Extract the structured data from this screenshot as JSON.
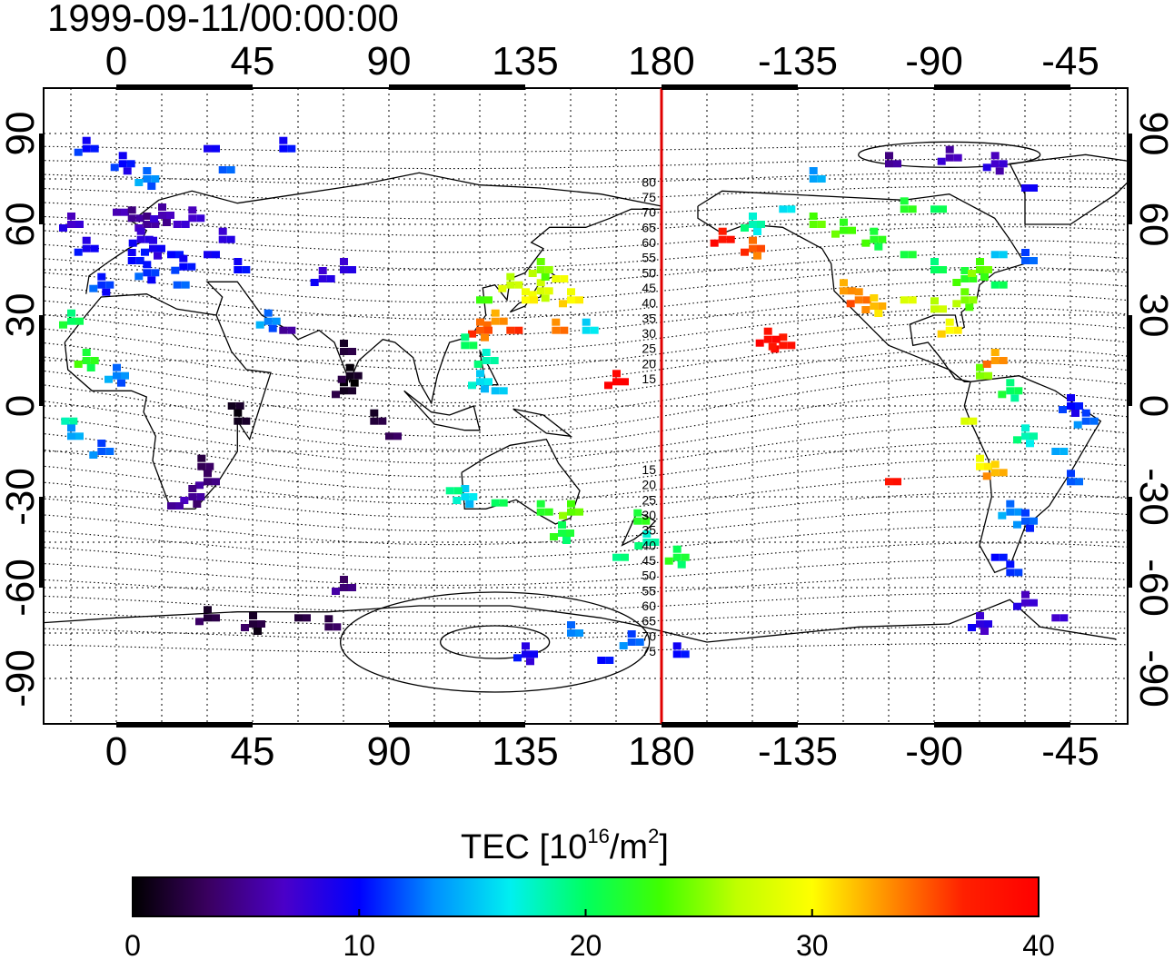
{
  "timestamp": "1999-09-11/00:00:00",
  "map": {
    "projection": "equirectangular",
    "center_longitude": 180,
    "grid": true,
    "top_lon_labels": [
      "0",
      "45",
      "90",
      "135",
      "180",
      "-135",
      "-90",
      "-45"
    ],
    "bottom_lon_labels": [
      "0",
      "45",
      "90",
      "135",
      "180",
      "-135",
      "-90",
      "-45"
    ],
    "lon_values": [
      0,
      45,
      90,
      135,
      180,
      225,
      270,
      315
    ],
    "lat_labels": [
      "90",
      "60",
      "30",
      "0",
      "-30",
      "-60",
      "-90"
    ],
    "lat_values": [
      90,
      60,
      30,
      0,
      -30,
      -60,
      -90
    ],
    "meridian_line_color": "#e00000",
    "magnetic_lat_labels": [
      "80",
      "75",
      "70",
      "65",
      "60",
      "55",
      "50",
      "45",
      "40",
      "35",
      "30",
      "25",
      "20",
      "15",
      "15",
      "20",
      "25",
      "30",
      "35",
      "40",
      "45",
      "50",
      "55",
      "60",
      "65",
      "70",
      "75"
    ]
  },
  "colorbar": {
    "title_prefix": "TEC  [10",
    "title_sup1": "16",
    "title_mid": "/m",
    "title_sup2": "2",
    "title_suffix": "]",
    "min": 0,
    "max": 40,
    "tick_labels": [
      "0",
      "10",
      "20",
      "30",
      "40"
    ],
    "colors": [
      "#000000",
      "#3a0060",
      "#4b00c8",
      "#0000ff",
      "#0090ff",
      "#00f0f0",
      "#00ff60",
      "#40ff00",
      "#c0ff00",
      "#ffff00",
      "#ff9000",
      "#ff2000",
      "#ff0000"
    ]
  },
  "chart_data": {
    "type": "heatmap",
    "value_label": "TEC",
    "value_units": "10^16/m^2",
    "points": [
      {
        "lon": 0,
        "lat": 64,
        "tec": 6
      },
      {
        "lon": 5,
        "lat": 62,
        "tec": 5
      },
      {
        "lon": 10,
        "lat": 60,
        "tec": 5
      },
      {
        "lon": 15,
        "lat": 63,
        "tec": 6
      },
      {
        "lon": 20,
        "lat": 60,
        "tec": 7
      },
      {
        "lon": 25,
        "lat": 62,
        "tec": 7
      },
      {
        "lon": 8,
        "lat": 55,
        "tec": 8
      },
      {
        "lon": 12,
        "lat": 52,
        "tec": 9
      },
      {
        "lon": 18,
        "lat": 50,
        "tec": 10
      },
      {
        "lon": 5,
        "lat": 48,
        "tec": 10
      },
      {
        "lon": 22,
        "lat": 46,
        "tec": 10
      },
      {
        "lon": 10,
        "lat": 44,
        "tec": 11
      },
      {
        "lon": 30,
        "lat": 50,
        "tec": 9
      },
      {
        "lon": 35,
        "lat": 55,
        "tec": 8
      },
      {
        "lon": -10,
        "lat": 52,
        "tec": 9
      },
      {
        "lon": -5,
        "lat": 40,
        "tec": 11
      },
      {
        "lon": 20,
        "lat": 40,
        "tec": 12
      },
      {
        "lon": 40,
        "lat": 45,
        "tec": 10
      },
      {
        "lon": -15,
        "lat": 60,
        "tec": 7
      },
      {
        "lon": 2,
        "lat": 80,
        "tec": 10
      },
      {
        "lon": 30,
        "lat": 85,
        "tec": 9
      },
      {
        "lon": 55,
        "lat": 85,
        "tec": 10
      },
      {
        "lon": -10,
        "lat": 85,
        "tec": 10
      },
      {
        "lon": 10,
        "lat": 75,
        "tec": 13
      },
      {
        "lon": 35,
        "lat": 78,
        "tec": 12
      },
      {
        "lon": 75,
        "lat": 45,
        "tec": 8
      },
      {
        "lon": 68,
        "lat": 42,
        "tec": 8
      },
      {
        "lon": 50,
        "lat": 28,
        "tec": 13
      },
      {
        "lon": 55,
        "lat": 25,
        "tec": 5
      },
      {
        "lon": 75,
        "lat": 18,
        "tec": 2
      },
      {
        "lon": 75,
        "lat": 5,
        "tec": 1
      },
      {
        "lon": 77,
        "lat": 10,
        "tec": 1
      },
      {
        "lon": 38,
        "lat": 0,
        "tec": 1
      },
      {
        "lon": 40,
        "lat": -5,
        "tec": 1
      },
      {
        "lon": 30,
        "lat": -25,
        "tec": 4
      },
      {
        "lon": 25,
        "lat": -30,
        "tec": 5
      },
      {
        "lon": 18,
        "lat": -33,
        "tec": 5
      },
      {
        "lon": 28,
        "lat": -20,
        "tec": 3
      },
      {
        "lon": -15,
        "lat": 28,
        "tec": 20
      },
      {
        "lon": -10,
        "lat": 15,
        "tec": 22
      },
      {
        "lon": -17,
        "lat": -5,
        "tec": 18
      },
      {
        "lon": -15,
        "lat": -10,
        "tec": 14
      },
      {
        "lon": -5,
        "lat": -15,
        "tec": 12
      },
      {
        "lon": 0,
        "lat": 10,
        "tec": 13
      },
      {
        "lon": 90,
        "lat": -10,
        "tec": 3
      },
      {
        "lon": 85,
        "lat": -5,
        "tec": 2
      },
      {
        "lon": 130,
        "lat": 40,
        "tec": 27
      },
      {
        "lon": 140,
        "lat": 38,
        "tec": 28
      },
      {
        "lon": 145,
        "lat": 42,
        "tec": 29
      },
      {
        "lon": 135,
        "lat": 35,
        "tec": 30
      },
      {
        "lon": 125,
        "lat": 28,
        "tec": 33
      },
      {
        "lon": 120,
        "lat": 25,
        "tec": 35
      },
      {
        "lon": 130,
        "lat": 25,
        "tec": 36
      },
      {
        "lon": 145,
        "lat": 25,
        "tec": 34
      },
      {
        "lon": 150,
        "lat": 35,
        "tec": 30
      },
      {
        "lon": 140,
        "lat": 45,
        "tec": 25
      },
      {
        "lon": 120,
        "lat": 35,
        "tec": 23
      },
      {
        "lon": 115,
        "lat": 20,
        "tec": 20
      },
      {
        "lon": 122,
        "lat": 15,
        "tec": 18
      },
      {
        "lon": 120,
        "lat": 8,
        "tec": 16
      },
      {
        "lon": 125,
        "lat": 5,
        "tec": 15
      },
      {
        "lon": 155,
        "lat": 25,
        "tec": 16
      },
      {
        "lon": 165,
        "lat": 8,
        "tec": 40
      },
      {
        "lon": 115,
        "lat": -30,
        "tec": 16
      },
      {
        "lon": 125,
        "lat": -32,
        "tec": 20
      },
      {
        "lon": 140,
        "lat": -35,
        "tec": 22
      },
      {
        "lon": 150,
        "lat": -35,
        "tec": 24
      },
      {
        "lon": 147,
        "lat": -42,
        "tec": 21
      },
      {
        "lon": 110,
        "lat": -28,
        "tec": 19
      },
      {
        "lon": 172,
        "lat": -38,
        "tec": 22
      },
      {
        "lon": 175,
        "lat": -45,
        "tec": 18
      },
      {
        "lon": 185,
        "lat": -50,
        "tec": 21
      },
      {
        "lon": 165,
        "lat": -50,
        "tec": 19
      },
      {
        "lon": 150,
        "lat": -75,
        "tec": 13
      },
      {
        "lon": 170,
        "lat": -78,
        "tec": 12
      },
      {
        "lon": 135,
        "lat": -82,
        "tec": 9
      },
      {
        "lon": 160,
        "lat": -84,
        "tec": 10
      },
      {
        "lon": 185,
        "lat": -82,
        "tec": 10
      },
      {
        "lon": 30,
        "lat": -70,
        "tec": 2
      },
      {
        "lon": 45,
        "lat": -72,
        "tec": 2
      },
      {
        "lon": 60,
        "lat": -70,
        "tec": 2
      },
      {
        "lon": 70,
        "lat": -73,
        "tec": 3
      },
      {
        "lon": 75,
        "lat": -60,
        "tec": 4
      },
      {
        "lon": 210,
        "lat": 60,
        "tec": 18
      },
      {
        "lon": 220,
        "lat": 65,
        "tec": 16
      },
      {
        "lon": 230,
        "lat": 60,
        "tec": 24
      },
      {
        "lon": 240,
        "lat": 58,
        "tec": 23
      },
      {
        "lon": 250,
        "lat": 55,
        "tec": 22
      },
      {
        "lon": 260,
        "lat": 50,
        "tec": 21
      },
      {
        "lon": 270,
        "lat": 45,
        "tec": 20
      },
      {
        "lon": 280,
        "lat": 42,
        "tec": 22
      },
      {
        "lon": 285,
        "lat": 45,
        "tec": 24
      },
      {
        "lon": 290,
        "lat": 50,
        "tec": 15
      },
      {
        "lon": 240,
        "lat": 38,
        "tec": 33
      },
      {
        "lon": 245,
        "lat": 35,
        "tec": 34
      },
      {
        "lon": 250,
        "lat": 33,
        "tec": 32
      },
      {
        "lon": 260,
        "lat": 35,
        "tec": 28
      },
      {
        "lon": 270,
        "lat": 32,
        "tec": 27
      },
      {
        "lon": 275,
        "lat": 25,
        "tec": 30
      },
      {
        "lon": 280,
        "lat": 35,
        "tec": 25
      },
      {
        "lon": 290,
        "lat": 40,
        "tec": 20
      },
      {
        "lon": 300,
        "lat": 48,
        "tec": 12
      },
      {
        "lon": 220,
        "lat": 20,
        "tec": 38
      },
      {
        "lon": 215,
        "lat": 22,
        "tec": 39
      },
      {
        "lon": 255,
        "lat": -25,
        "tec": 38
      },
      {
        "lon": 285,
        "lat": 10,
        "tec": 25
      },
      {
        "lon": 290,
        "lat": 15,
        "tec": 33
      },
      {
        "lon": 295,
        "lat": 5,
        "tec": 20
      },
      {
        "lon": 280,
        "lat": -5,
        "tec": 28
      },
      {
        "lon": 285,
        "lat": -20,
        "tec": 30
      },
      {
        "lon": 290,
        "lat": -22,
        "tec": 32
      },
      {
        "lon": 300,
        "lat": -10,
        "tec": 18
      },
      {
        "lon": 310,
        "lat": -15,
        "tec": 14
      },
      {
        "lon": 315,
        "lat": -25,
        "tec": 12
      },
      {
        "lon": 295,
        "lat": -35,
        "tec": 13
      },
      {
        "lon": 300,
        "lat": -38,
        "tec": 12
      },
      {
        "lon": 290,
        "lat": -50,
        "tec": 10
      },
      {
        "lon": 295,
        "lat": -55,
        "tec": 11
      },
      {
        "lon": 300,
        "lat": -65,
        "tec": 7
      },
      {
        "lon": 285,
        "lat": -72,
        "tec": 8
      },
      {
        "lon": 310,
        "lat": -70,
        "tec": 7
      },
      {
        "lon": 255,
        "lat": 80,
        "tec": 5
      },
      {
        "lon": 275,
        "lat": 82,
        "tec": 6
      },
      {
        "lon": 290,
        "lat": 80,
        "tec": 7
      },
      {
        "lon": 300,
        "lat": 72,
        "tec": 9
      },
      {
        "lon": 230,
        "lat": 75,
        "tec": 14
      },
      {
        "lon": 200,
        "lat": 55,
        "tec": 38
      },
      {
        "lon": 210,
        "lat": 52,
        "tec": 35
      },
      {
        "lon": 270,
        "lat": 65,
        "tec": 20
      },
      {
        "lon": 260,
        "lat": 65,
        "tec": 22
      },
      {
        "lon": 320,
        "lat": -5,
        "tec": 12
      },
      {
        "lon": 315,
        "lat": 0,
        "tec": 10
      }
    ]
  }
}
